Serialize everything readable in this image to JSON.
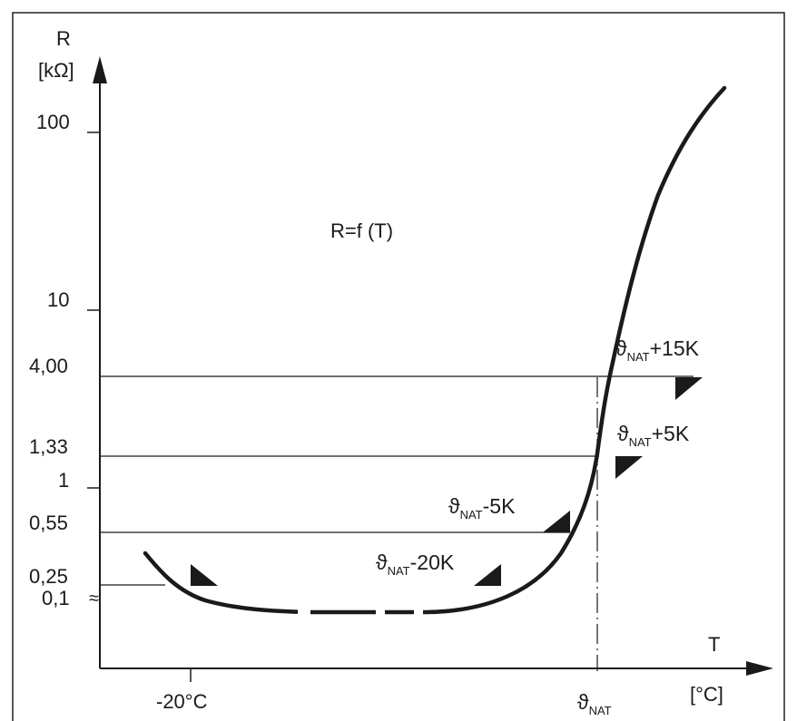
{
  "chart_data": {
    "type": "line",
    "title": "",
    "formula_label": "R=f (T)",
    "y_axis": {
      "symbol": "R",
      "unit": "[kΩ]",
      "scale": "non-linear (log-like)",
      "ticks": [
        {
          "label": "100",
          "value": 100
        },
        {
          "label": "10",
          "value": 10
        },
        {
          "label": "4,00",
          "value": 4.0
        },
        {
          "label": "1,33",
          "value": 1.33
        },
        {
          "label": "1",
          "value": 1
        },
        {
          "label": "0,55",
          "value": 0.55
        },
        {
          "label": "0,25",
          "value": 0.25
        },
        {
          "label": "0,1",
          "value": 0.1
        }
      ],
      "break_symbol": "≈"
    },
    "x_axis": {
      "symbol": "T",
      "unit": "[°C]",
      "ticks": [
        {
          "label": "-20°C",
          "value": -20
        },
        {
          "label_main": "ϑ",
          "label_sub": "NAT",
          "value": "NAT"
        }
      ]
    },
    "reference_lines": [
      {
        "r": 4.0,
        "label_main": "ϑ",
        "label_sub": "NAT",
        "label_suffix": "+15K"
      },
      {
        "r": 1.33,
        "label_main": "ϑ",
        "label_sub": "NAT",
        "label_suffix": "+5K"
      },
      {
        "r": 0.55,
        "label_main": "ϑ",
        "label_sub": "NAT",
        "label_suffix": "-5K"
      },
      {
        "r": 0.25,
        "label_main": "",
        "label_sub": "",
        "label_suffix": ""
      }
    ],
    "markers": [
      {
        "label_main": "",
        "label_sub": "",
        "label_suffix": ""
      },
      {
        "label_main": "ϑ",
        "label_sub": "NAT",
        "label_suffix": "-20K"
      }
    ],
    "curve_description": "PTC thermistor resistance vs temperature: slight dip below -20°C to a minimum, flat, then steep rise around ϑNAT",
    "grid": false,
    "legend": "none"
  }
}
